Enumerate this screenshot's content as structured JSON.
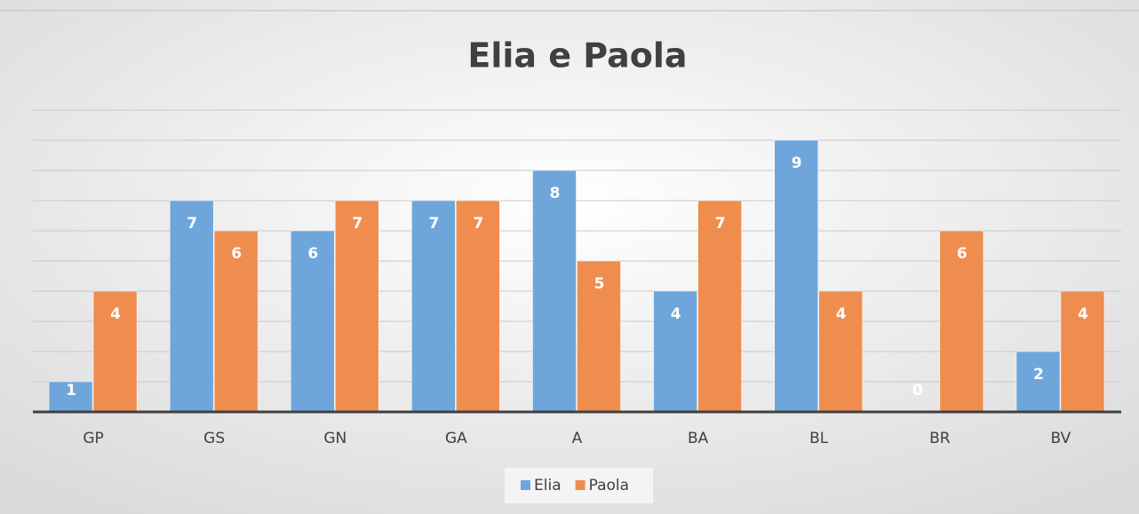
{
  "chart_data": {
    "type": "bar",
    "title": "Elia e Paola",
    "categories": [
      "GP",
      "GS",
      "GN",
      "GA",
      "A",
      "BA",
      "BL",
      "BR",
      "BV"
    ],
    "series": [
      {
        "name": "Elia",
        "color": "#6ea6db",
        "values": [
          1,
          7,
          6,
          7,
          8,
          4,
          9,
          0,
          2
        ]
      },
      {
        "name": "Paola",
        "color": "#ef8d4f",
        "values": [
          4,
          6,
          7,
          7,
          5,
          7,
          4,
          6,
          4
        ]
      }
    ],
    "ylim": [
      0,
      10
    ],
    "yticks": [
      0,
      1,
      2,
      3,
      4,
      5,
      6,
      7,
      8,
      9,
      10
    ],
    "grid": true,
    "legend": "bottom"
  }
}
